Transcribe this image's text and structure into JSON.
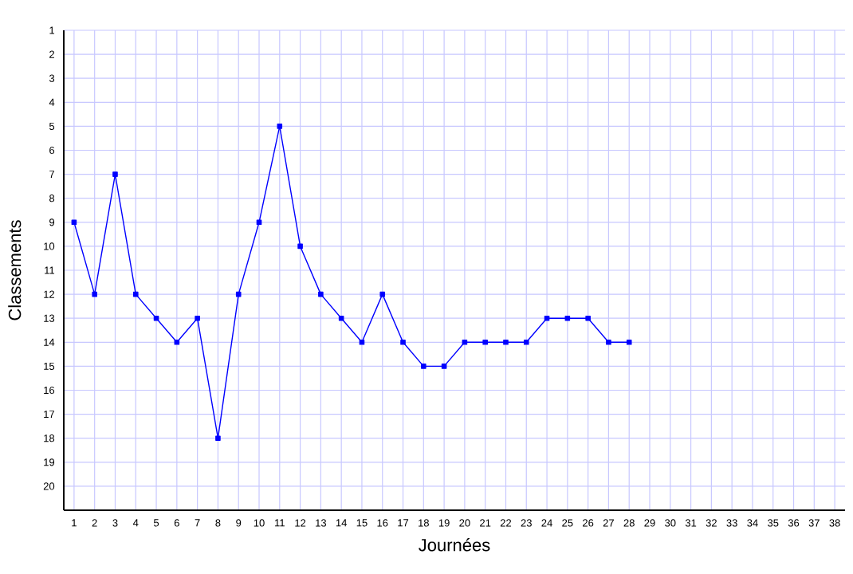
{
  "chart_data": {
    "type": "line",
    "xlabel": "Journées",
    "ylabel": "Classements",
    "x": [
      1,
      2,
      3,
      4,
      5,
      6,
      7,
      8,
      9,
      10,
      11,
      12,
      13,
      14,
      15,
      16,
      17,
      18,
      19,
      20,
      21,
      22,
      23,
      24,
      25,
      26,
      27,
      28
    ],
    "series": [
      {
        "color": "#0000ff",
        "values": [
          9,
          12,
          7,
          12,
          13,
          14,
          13,
          18,
          12,
          9,
          5,
          10,
          12,
          13,
          14,
          12,
          14,
          15,
          15,
          14,
          14,
          14,
          14,
          13,
          13,
          13,
          14,
          14
        ]
      }
    ],
    "xlim": [
      0.5,
      38.5
    ],
    "ylim": [
      21,
      1
    ],
    "xticks": [
      1,
      2,
      3,
      4,
      5,
      6,
      7,
      8,
      9,
      10,
      11,
      12,
      13,
      14,
      15,
      16,
      17,
      18,
      19,
      20,
      21,
      22,
      23,
      24,
      25,
      26,
      27,
      28,
      29,
      30,
      31,
      32,
      33,
      34,
      35,
      36,
      37,
      38
    ],
    "yticks": [
      1,
      2,
      3,
      4,
      5,
      6,
      7,
      8,
      9,
      10,
      11,
      12,
      13,
      14,
      15,
      16,
      17,
      18,
      19,
      20
    ],
    "grid": true,
    "marker": "square",
    "line_style": "solid"
  }
}
